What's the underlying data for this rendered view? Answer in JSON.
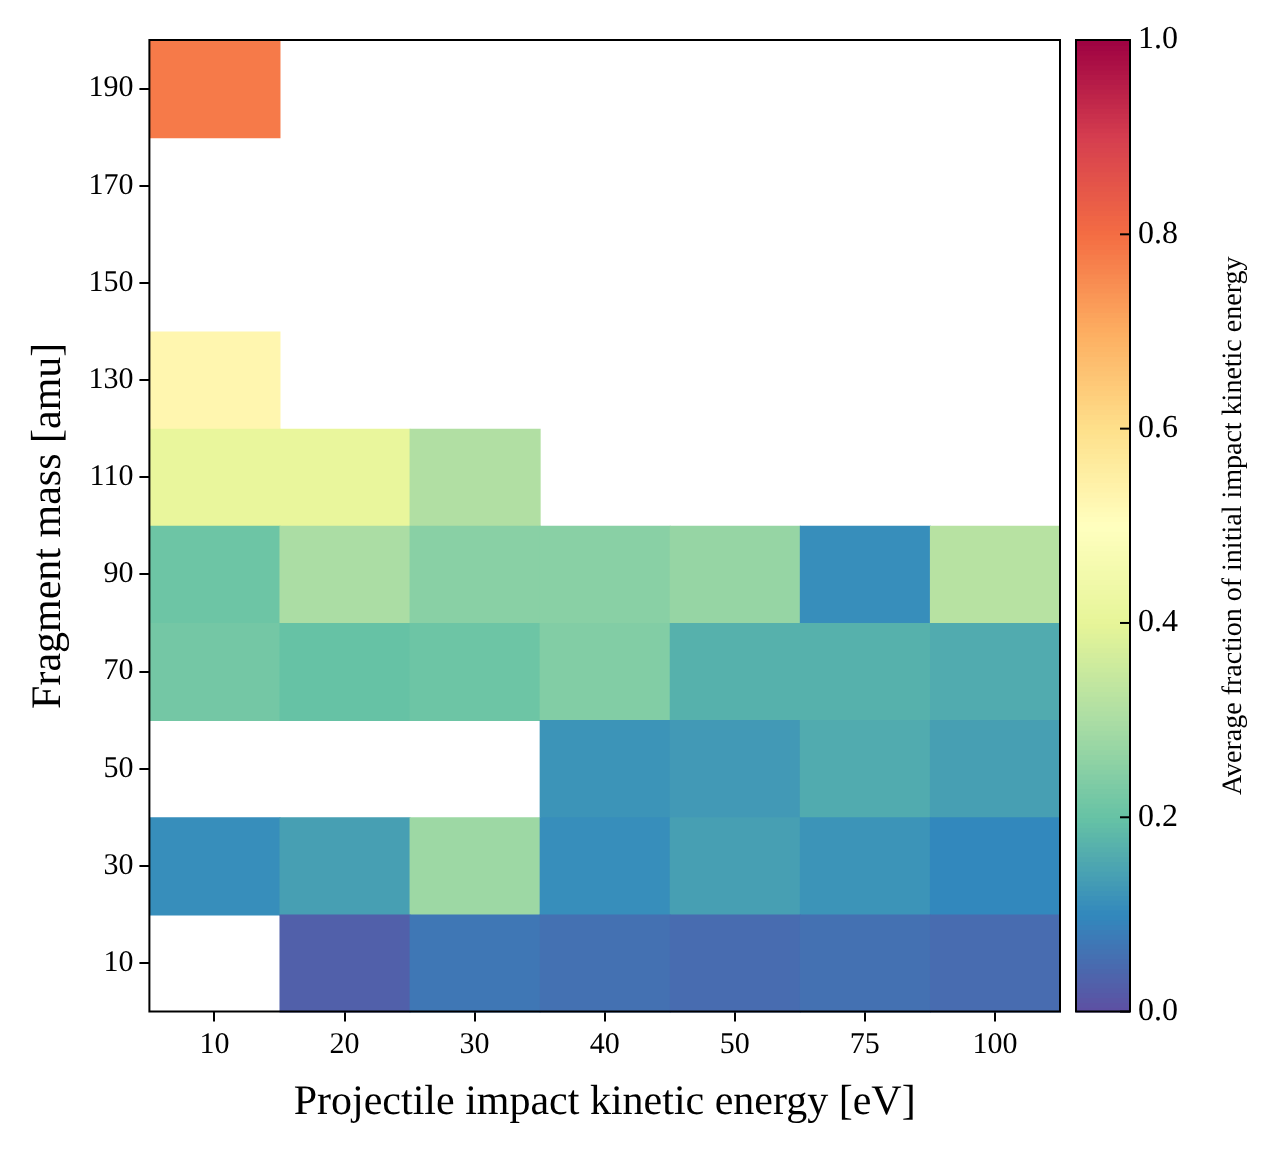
{
  "chart_data": {
    "type": "heatmap",
    "xlabel": "Projectile impact kinetic energy [eV]",
    "ylabel": "Fragment mass [amu]",
    "clabel": "Average fraction of initial impact kinetic energy",
    "categories": [
      "10",
      "20",
      "30",
      "40",
      "50",
      "75",
      "100"
    ],
    "y_categories": [
      "190",
      "170",
      "150",
      "130",
      "110",
      "90",
      "70",
      "50",
      "30",
      "10"
    ],
    "cells": [
      [
        0.78,
        null,
        null,
        null,
        null,
        null,
        null
      ],
      [
        null,
        null,
        null,
        null,
        null,
        null,
        null
      ],
      [
        null,
        null,
        null,
        null,
        null,
        null,
        null
      ],
      [
        0.53,
        null,
        null,
        null,
        null,
        null,
        null
      ],
      [
        0.41,
        0.41,
        0.31,
        null,
        null,
        null,
        null
      ],
      [
        0.21,
        0.3,
        0.25,
        0.25,
        0.27,
        0.11,
        0.32
      ],
      [
        0.22,
        0.2,
        0.21,
        0.24,
        0.17,
        0.17,
        0.16
      ],
      [
        null,
        null,
        null,
        0.12,
        0.13,
        0.16,
        0.14
      ],
      [
        0.11,
        0.14,
        0.28,
        0.11,
        0.14,
        0.12,
        0.1
      ],
      [
        null,
        0.03,
        0.07,
        0.06,
        0.05,
        0.06,
        0.05
      ]
    ],
    "clim": [
      0,
      1
    ],
    "cticks": [
      {
        "value": 0,
        "label": "0.0"
      },
      0.2,
      0.4,
      0.6,
      0.8,
      {
        "value": 1,
        "label": "1.0"
      }
    ]
  }
}
